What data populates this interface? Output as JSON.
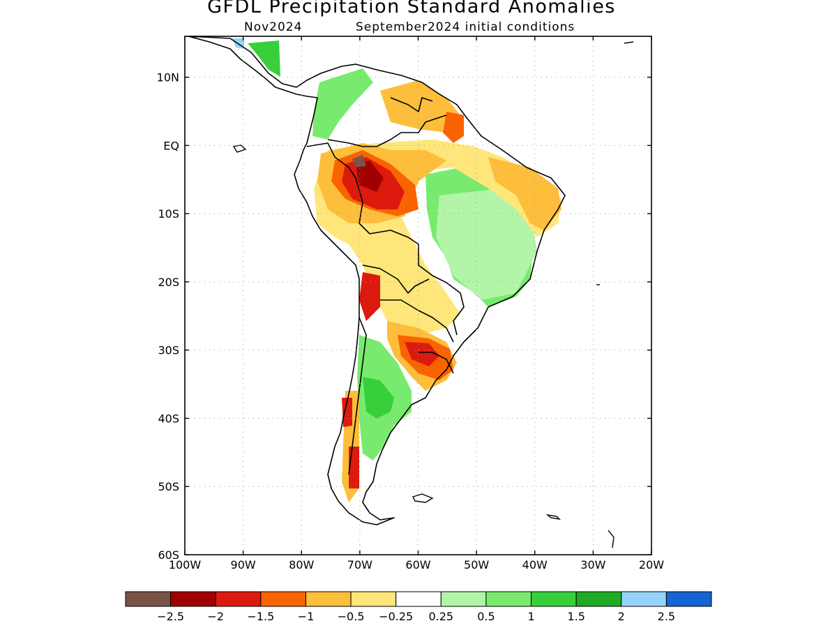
{
  "title": "GFDL Precipitation Standard Anomalies",
  "subtitle_left": "Nov2024",
  "subtitle_right": "September2024 initial conditions",
  "map": {
    "lon_range": [
      -100,
      -20
    ],
    "lat_range": [
      -60,
      16
    ],
    "lon_ticks": [
      "100W",
      "90W",
      "80W",
      "70W",
      "60W",
      "50W",
      "40W",
      "30W",
      "20W"
    ],
    "lat_ticks": [
      "10N",
      "EQ",
      "10S",
      "20S",
      "30S",
      "40S",
      "50S",
      "60S"
    ],
    "gridlines": "dotted"
  },
  "colorbar": {
    "colors": [
      "#7a5248",
      "#a00000",
      "#dc1a0e",
      "#fa6400",
      "#fdbe3c",
      "#fee67a",
      "#ffffff",
      "#b2f5a8",
      "#78eb6e",
      "#37d03a",
      "#1faa23",
      "#96d2fa",
      "#1464d2"
    ],
    "labels": [
      "-2.5",
      "-2",
      "-1.5",
      "-1",
      "-0.5",
      "-0.25",
      "0.25",
      "0.5",
      "1",
      "1.5",
      "2",
      "2.5"
    ]
  }
}
